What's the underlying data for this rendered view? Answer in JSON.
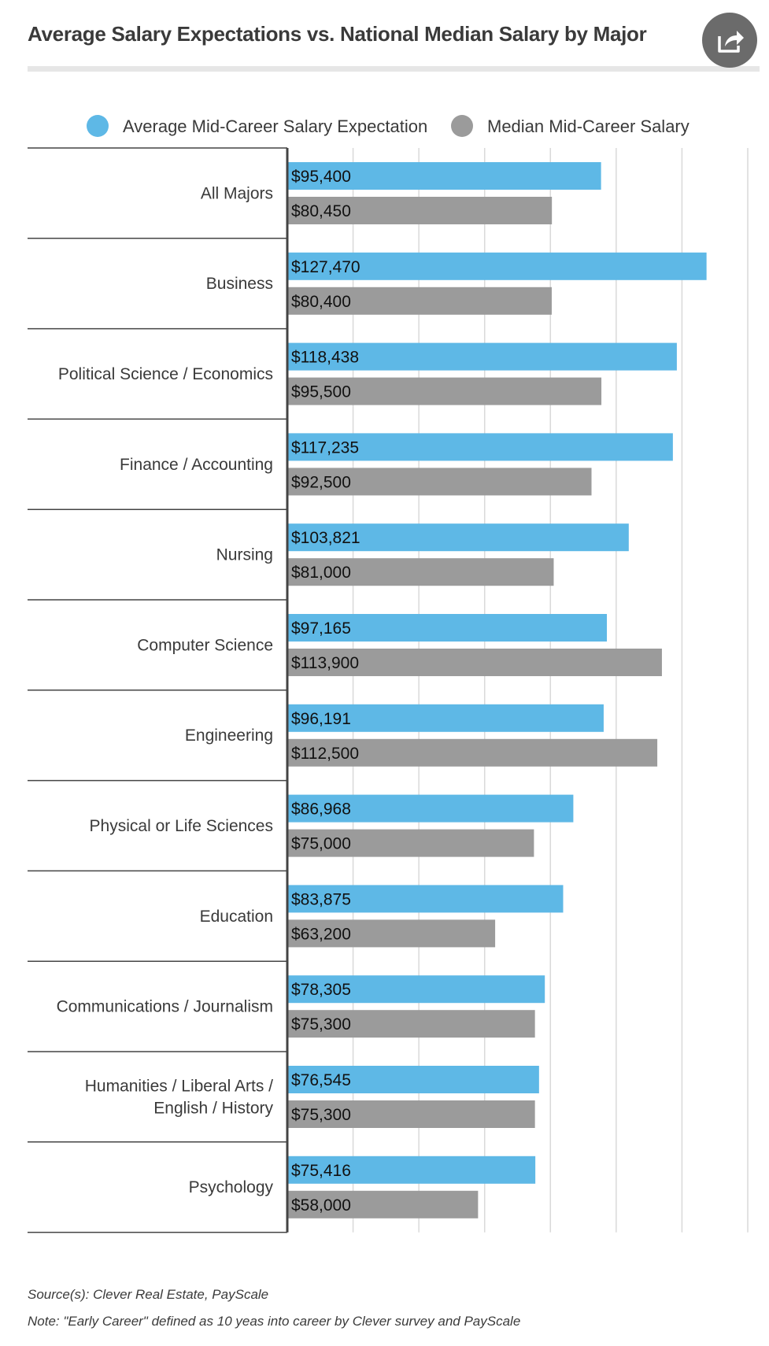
{
  "title": "Average Salary Expectations vs. National Median Salary by Major",
  "share_icon": "share-icon",
  "footer": {
    "source": "Source(s): Clever Real Estate, PayScale",
    "note": "Note: \"Early Career\" defined as 10 yeas into career by Clever survey and PayScale"
  },
  "colors": {
    "expectation": "#5eb8e6",
    "median": "#9b9b9b",
    "text": "#3a3a3a",
    "grid": "#d9d9d9",
    "axis": "#444444"
  },
  "chart_data": {
    "type": "bar",
    "orientation": "horizontal",
    "title": "Average Salary Expectations vs. National Median Salary by Major",
    "xlabel": "",
    "ylabel": "",
    "xlim": [
      0,
      140000
    ],
    "grid": true,
    "legend_position": "top",
    "categories": [
      "All Majors",
      "Business",
      "Political Science / Economics",
      "Finance / Accounting",
      "Nursing",
      "Computer Science",
      "Engineering",
      "Physical or Life Sciences",
      "Education",
      "Communications / Journalism",
      "Humanities / Liberal Arts / English / History",
      "Psychology"
    ],
    "category_lines": [
      [
        "All Majors"
      ],
      [
        "Business"
      ],
      [
        "Political Science / Economics"
      ],
      [
        "Finance / Accounting"
      ],
      [
        "Nursing"
      ],
      [
        "Computer Science"
      ],
      [
        "Engineering"
      ],
      [
        "Physical or Life Sciences"
      ],
      [
        "Education"
      ],
      [
        "Communications / Journalism"
      ],
      [
        "Humanities / Liberal Arts /",
        "English / History"
      ],
      [
        "Psychology"
      ]
    ],
    "series": [
      {
        "name": "Average Mid-Career Salary Expectation",
        "values": [
          95400,
          127470,
          118438,
          117235,
          103821,
          97165,
          96191,
          86968,
          83875,
          78305,
          76545,
          75416
        ],
        "labels": [
          "$95,400",
          "$127,470",
          "$118,438",
          "$117,235",
          "$103,821",
          "$97,165",
          "$96,191",
          "$86,968",
          "$83,875",
          "$78,305",
          "$76,545",
          "$75,416"
        ]
      },
      {
        "name": "Median Mid-Career Salary",
        "values": [
          80450,
          80400,
          95500,
          92500,
          81000,
          113900,
          112500,
          75000,
          63200,
          75300,
          75300,
          58000
        ],
        "labels": [
          "$80,450",
          "$80,400",
          "$95,500",
          "$92,500",
          "$81,000",
          "$113,900",
          "$112,500",
          "$75,000",
          "$63,200",
          "$75,300",
          "$75,300",
          "$58,000"
        ]
      }
    ]
  }
}
